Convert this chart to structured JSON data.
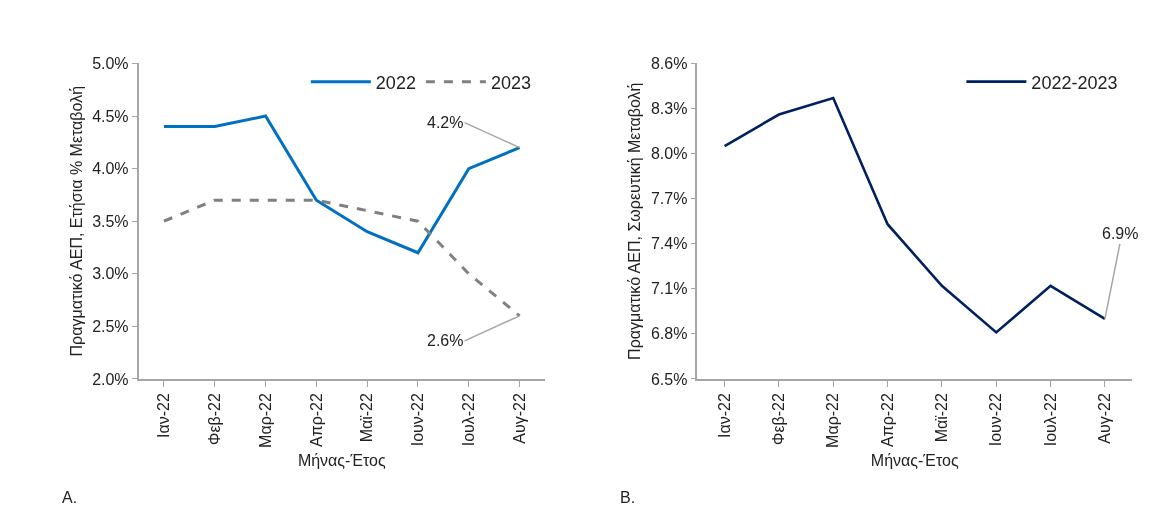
{
  "chart_data": [
    {
      "type": "line",
      "xlabel": "Μήνας-Έτος",
      "ylabel": "Πραγματικό ΑΕΠ, Ετήσια % Μεταβολή",
      "categories": [
        "Ιαν-22",
        "Φεβ-22",
        "Μαρ-22",
        "Απρ-22",
        "Μαϊ-22",
        "Ιουν-22",
        "Ιουλ-22",
        "Αυγ-22"
      ],
      "series": [
        {
          "name": "2022",
          "color": "#0070c0",
          "line_style": "solid",
          "values": [
            4.4,
            4.4,
            4.5,
            3.7,
            3.4,
            3.2,
            4.0,
            4.2
          ]
        },
        {
          "name": "2023",
          "color": "#808080",
          "line_style": "dashed",
          "values": [
            3.5,
            3.7,
            3.7,
            3.7,
            3.6,
            3.5,
            3.0,
            2.6
          ]
        }
      ],
      "ylim": [
        2.0,
        5.0
      ],
      "yticks": [
        {
          "value": 2.0,
          "label": "2.0%"
        },
        {
          "value": 2.5,
          "label": "2.5%"
        },
        {
          "value": 3.0,
          "label": "3.0%"
        },
        {
          "value": 3.5,
          "label": "3.5%"
        },
        {
          "value": 4.0,
          "label": "4.0%"
        },
        {
          "value": 4.5,
          "label": "4.5%"
        },
        {
          "value": 5.0,
          "label": "5.0%"
        }
      ],
      "annotations": [
        {
          "text": "4.2%",
          "x": "Αυγ-22",
          "y": 4.2
        },
        {
          "text": "2.6%",
          "x": "Αυγ-22",
          "y": 2.6
        },
        "A."
      ],
      "legend": "top right",
      "marker": "none"
    },
    {
      "type": "line",
      "xlabel": "Μήνας-Έτος",
      "ylabel": "Πραγματικό ΑΕΠ, Σωρευτική Μεταβολή",
      "categories": [
        "Ιαν-22",
        "Φεβ-22",
        "Μαρ-22",
        "Απρ-22",
        "Μαϊ-22",
        "Ιουν-22",
        "Ιουλ-22",
        "Αυγ-22"
      ],
      "series": [
        {
          "name": "2022-2023",
          "color": "#002060",
          "values": [
            8.05,
            8.26,
            8.37,
            7.53,
            7.12,
            6.81,
            7.12,
            6.9
          ]
        }
      ],
      "ylim": [
        6.5,
        8.6
      ],
      "yticks": [
        {
          "value": 6.5,
          "label": "6.5%"
        },
        {
          "value": 6.8,
          "label": "6.8%"
        },
        {
          "value": 7.1,
          "label": "7.1%"
        },
        {
          "value": 7.4,
          "label": "7.4%"
        },
        {
          "value": 7.7,
          "label": "7.7%"
        },
        {
          "value": 8.0,
          "label": "8.0%"
        },
        {
          "value": 8.3,
          "label": "8.3%"
        },
        {
          "value": 8.6,
          "label": "8.6%"
        }
      ],
      "annotations": [
        {
          "text": "6.9%",
          "x": "Αυγ-22",
          "y": 6.9
        },
        "B."
      ],
      "legend": "top right",
      "marker": "none"
    }
  ]
}
